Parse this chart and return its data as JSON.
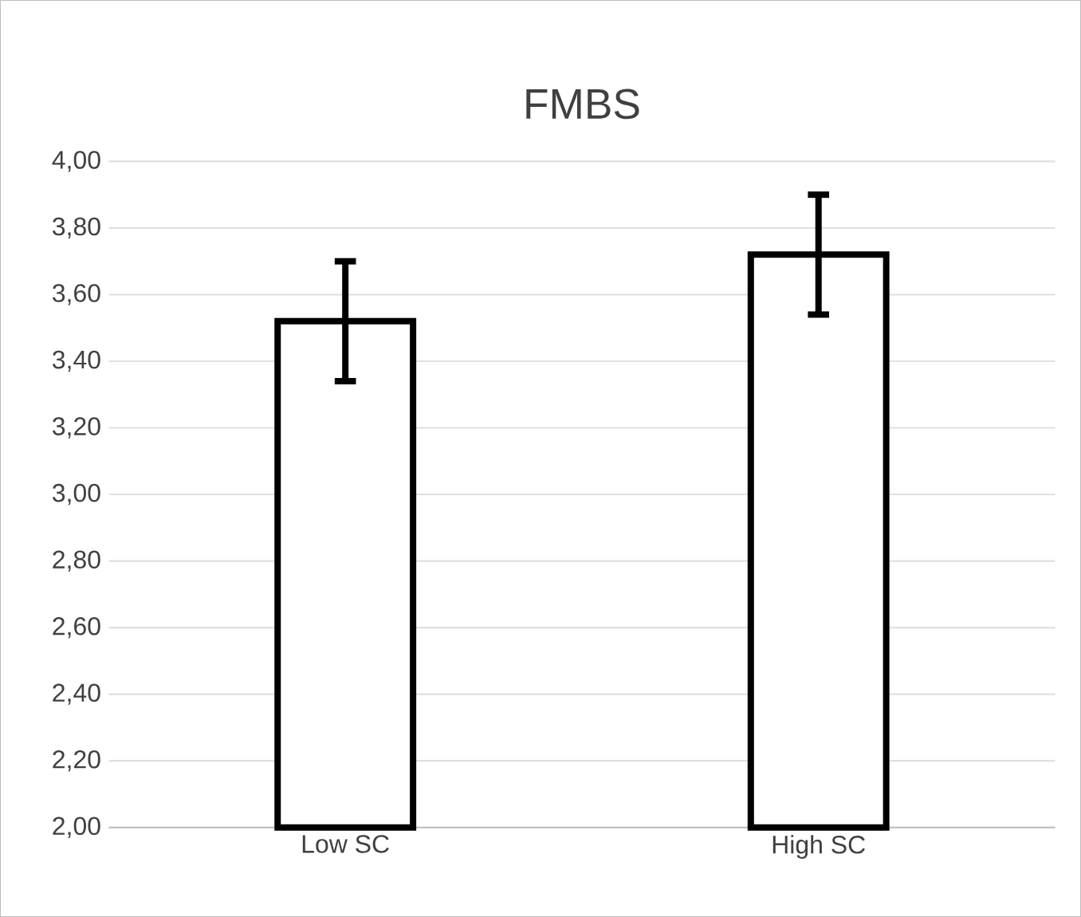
{
  "chart_data": {
    "type": "bar",
    "title": "FMBS",
    "categories": [
      "Low SC",
      "High SC"
    ],
    "values": [
      3.52,
      3.72
    ],
    "errors": [
      0.18,
      0.18
    ],
    "color": "#ffffff",
    "ylim": [
      2,
      4
    ],
    "yticks": [
      {
        "value": 2,
        "label": "2,00"
      },
      {
        "value": 2.2,
        "label": "2,20"
      },
      {
        "value": 2.4,
        "label": "2,40"
      },
      {
        "value": 2.6,
        "label": "2,60"
      },
      {
        "value": 2.8,
        "label": "2,80"
      },
      {
        "value": 3,
        "label": "3,00"
      },
      {
        "value": 3.2,
        "label": "3,20"
      },
      {
        "value": 3.4,
        "label": "3,40"
      },
      {
        "value": 3.6,
        "label": "3,60"
      },
      {
        "value": 3.8,
        "label": "3,80"
      },
      {
        "value": 4,
        "label": "4,00"
      }
    ],
    "grid": "y"
  }
}
